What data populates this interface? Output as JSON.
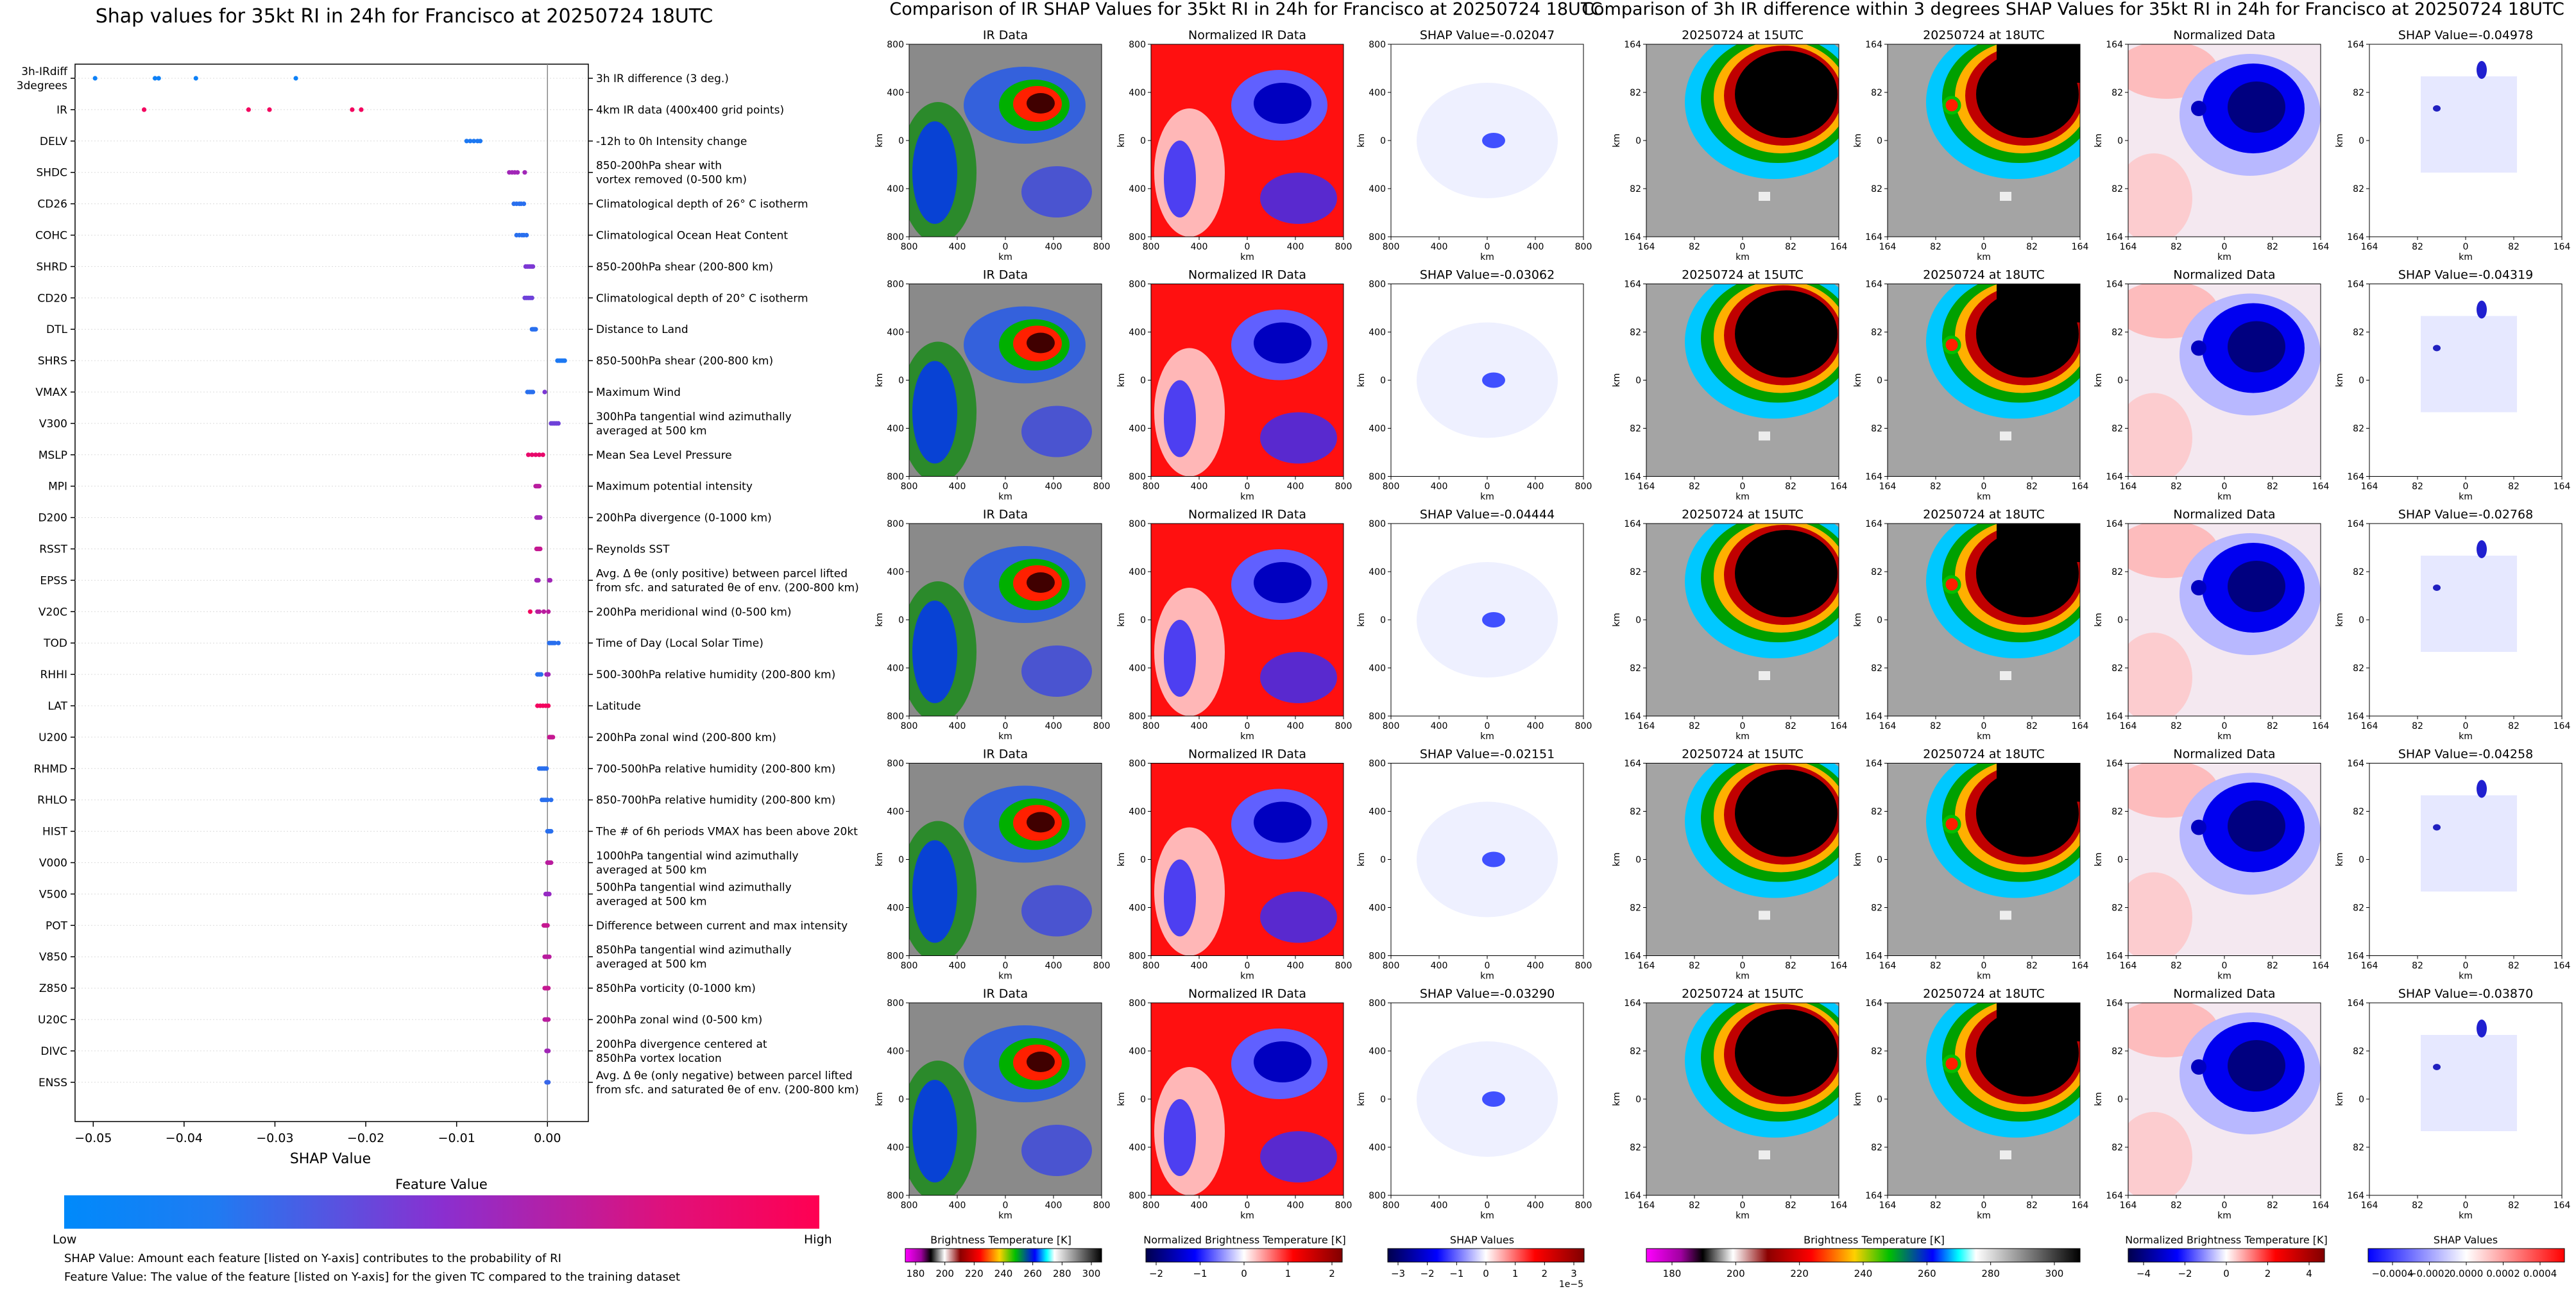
{
  "left_panel": {
    "title": "Shap values for 35kt RI in 24h for Francisco at 20250724 18UTC",
    "xlabel": "SHAP Value",
    "legend_title": "Feature Value",
    "legend_low": "Low",
    "legend_high": "High",
    "note1": "SHAP Value: Amount each feature [listed on Y-axis] contributes to the probability of RI",
    "note2": "Feature Value: The value of the feature [listed on Y-axis] for the given TC compared to the training dataset"
  },
  "middle_panel": {
    "title": "Comparison of IR SHAP Values for 35kt RI in 24h for Francisco at 20250724 18UTC",
    "col_titles": [
      "IR Data",
      "Normalized IR Data"
    ],
    "shap_titles": [
      "SHAP Value=-0.02047",
      "SHAP Value=-0.03062",
      "SHAP Value=-0.04444",
      "SHAP Value=-0.02151",
      "SHAP Value=-0.03290"
    ],
    "km": "km",
    "ticks": [
      "800",
      "400",
      "0",
      "400",
      "800"
    ],
    "cbar_ir": {
      "label": "Brightness Temperature [K]",
      "ticks": [
        "180",
        "200",
        "220",
        "240",
        "260",
        "280",
        "300"
      ]
    },
    "cbar_norm": {
      "label": "Normalized Brightness Temperature [K]",
      "ticks": [
        "−2",
        "−1",
        "0",
        "1",
        "2"
      ]
    },
    "cbar_shap": {
      "label": "SHAP Values",
      "ticks": [
        "−3",
        "−2",
        "−1",
        "0",
        "1",
        "2",
        "3"
      ],
      "exponent": "1e−5"
    }
  },
  "right_panel": {
    "title": "Comparison of 3h IR difference within 3 degrees SHAP Values for 35kt RI in 24h for Francisco at 20250724 18UTC",
    "col_titles": [
      "20250724 at 15UTC",
      "20250724 at 18UTC",
      "Normalized Data"
    ],
    "shap_titles": [
      "SHAP Value=-0.04978",
      "SHAP Value=-0.04319",
      "SHAP Value=-0.02768",
      "SHAP Value=-0.04258",
      "SHAP Value=-0.03870"
    ],
    "km": "km",
    "ticks": [
      "164",
      "82",
      "0",
      "82",
      "164"
    ],
    "cbar_ir": {
      "label": "Brightness Temperature [K]",
      "ticks": [
        "180",
        "200",
        "220",
        "240",
        "260",
        "280",
        "300"
      ]
    },
    "cbar_norm": {
      "label": "Normalized Brightness Temperature [K]",
      "ticks": [
        "−4",
        "−2",
        "0",
        "2",
        "4"
      ]
    },
    "cbar_shap": {
      "label": "SHAP Values",
      "ticks": [
        "−0.0004",
        "−0.0002",
        "0.0000",
        "0.0002",
        "0.0004"
      ]
    }
  },
  "chart_data": {
    "type": "scatter",
    "title": "Shap values for 35kt RI in 24h for Francisco at 20250724 18UTC",
    "xlabel": "SHAP Value",
    "ylabel": "",
    "xlim": [
      -0.052,
      0.0045
    ],
    "xticks": [
      -0.05,
      -0.04,
      -0.03,
      -0.02,
      -0.01,
      0.0
    ],
    "xtick_labels": [
      "−0.05",
      "−0.04",
      "−0.03",
      "−0.02",
      "−0.01",
      "0.00"
    ],
    "colors": {
      "low": "#008afb",
      "mid": "#8a2fd0",
      "high": "#ff0052"
    },
    "features": [
      {
        "code": "3h-IRdiff\n3degrees",
        "desc": "3h IR difference (3 deg.)",
        "points": [
          [
            -0.0498,
            0.05
          ],
          [
            -0.0432,
            0.05
          ],
          [
            -0.0428,
            0.05
          ],
          [
            -0.0387,
            0.05
          ],
          [
            -0.0277,
            0.05
          ]
        ]
      },
      {
        "code": "IR",
        "desc": "4km IR data (400x400 grid points)",
        "points": [
          [
            -0.0444,
            0.95
          ],
          [
            -0.0329,
            0.95
          ],
          [
            -0.0306,
            0.95
          ],
          [
            -0.0215,
            0.95
          ],
          [
            -0.0205,
            0.95
          ]
        ]
      },
      {
        "code": "DELV",
        "desc": "-12h to 0h Intensity change",
        "points": [
          [
            -0.0089,
            0.1
          ],
          [
            -0.0085,
            0.1
          ],
          [
            -0.0081,
            0.1
          ],
          [
            -0.0077,
            0.1
          ],
          [
            -0.0074,
            0.1
          ]
        ]
      },
      {
        "code": "SHDC",
        "desc": "850-200hPa shear with\nvortex removed (0-500 km)",
        "points": [
          [
            -0.0042,
            0.6
          ],
          [
            -0.0039,
            0.6
          ],
          [
            -0.0036,
            0.6
          ],
          [
            -0.0033,
            0.6
          ],
          [
            -0.0025,
            0.6
          ]
        ]
      },
      {
        "code": "CD26",
        "desc": "Climatological depth of 26° C isotherm",
        "points": [
          [
            -0.0037,
            0.15
          ],
          [
            -0.0034,
            0.15
          ],
          [
            -0.0031,
            0.15
          ],
          [
            -0.0029,
            0.15
          ],
          [
            -0.0026,
            0.15
          ]
        ]
      },
      {
        "code": "COHC",
        "desc": "Climatological Ocean Heat Content",
        "points": [
          [
            -0.0034,
            0.15
          ],
          [
            -0.0031,
            0.15
          ],
          [
            -0.0028,
            0.15
          ],
          [
            -0.0026,
            0.15
          ],
          [
            -0.0023,
            0.15
          ]
        ]
      },
      {
        "code": "SHRD",
        "desc": "850-200hPa shear (200-800 km)",
        "points": [
          [
            -0.0024,
            0.45
          ],
          [
            -0.0022,
            0.45
          ],
          [
            -0.002,
            0.45
          ],
          [
            -0.0018,
            0.45
          ],
          [
            -0.0016,
            0.45
          ]
        ]
      },
      {
        "code": "CD20",
        "desc": "Climatological depth of 20° C isotherm",
        "points": [
          [
            -0.0025,
            0.4
          ],
          [
            -0.0023,
            0.4
          ],
          [
            -0.0021,
            0.4
          ],
          [
            -0.0019,
            0.4
          ],
          [
            -0.0017,
            0.4
          ]
        ]
      },
      {
        "code": "DTL",
        "desc": "Distance to Land",
        "points": [
          [
            -0.0017,
            0.15
          ],
          [
            -0.0016,
            0.15
          ],
          [
            -0.0015,
            0.15
          ],
          [
            -0.0014,
            0.15
          ],
          [
            -0.0013,
            0.15
          ]
        ]
      },
      {
        "code": "SHRS",
        "desc": "850-500hPa shear (200-800 km)",
        "points": [
          [
            0.0011,
            0.1
          ],
          [
            0.0013,
            0.1
          ],
          [
            0.0015,
            0.1
          ],
          [
            0.0017,
            0.1
          ],
          [
            0.0019,
            0.1
          ]
        ]
      },
      {
        "code": "VMAX",
        "desc": "Maximum Wind",
        "points": [
          [
            -0.0022,
            0.15
          ],
          [
            -0.002,
            0.15
          ],
          [
            -0.0018,
            0.15
          ],
          [
            -0.0016,
            0.15
          ],
          [
            -0.0003,
            0.45
          ]
        ]
      },
      {
        "code": "V300",
        "desc": "300hPa tangential wind azimuthally\naveraged at 500 km",
        "points": [
          [
            0.0004,
            0.4
          ],
          [
            0.0006,
            0.4
          ],
          [
            0.0008,
            0.4
          ],
          [
            0.001,
            0.4
          ],
          [
            0.0012,
            0.4
          ]
        ]
      },
      {
        "code": "MSLP",
        "desc": "Mean Sea Level Pressure",
        "points": [
          [
            -0.0021,
            0.9
          ],
          [
            -0.0017,
            0.9
          ],
          [
            -0.0013,
            0.9
          ],
          [
            -0.0009,
            0.9
          ],
          [
            -0.0005,
            0.9
          ]
        ]
      },
      {
        "code": "MPI",
        "desc": "Maximum potential intensity",
        "points": [
          [
            -0.0013,
            0.7
          ],
          [
            -0.0012,
            0.7
          ],
          [
            -0.0011,
            0.7
          ],
          [
            -0.001,
            0.7
          ],
          [
            -0.0009,
            0.7
          ]
        ]
      },
      {
        "code": "D200",
        "desc": "200hPa divergence (0-1000 km)",
        "points": [
          [
            -0.0012,
            0.6
          ],
          [
            -0.0011,
            0.6
          ],
          [
            -0.001,
            0.6
          ],
          [
            -0.0009,
            0.6
          ],
          [
            -0.0008,
            0.6
          ]
        ]
      },
      {
        "code": "RSST",
        "desc": "Reynolds SST",
        "points": [
          [
            -0.0012,
            0.75
          ],
          [
            -0.0011,
            0.75
          ],
          [
            -0.001,
            0.75
          ],
          [
            -0.0009,
            0.75
          ],
          [
            -0.0008,
            0.75
          ]
        ]
      },
      {
        "code": "EPSS",
        "desc": "Avg. Δ θe (only positive) between parcel lifted\nfrom sfc. and saturated θe of env. (200-800 km)",
        "points": [
          [
            -0.0012,
            0.6
          ],
          [
            -0.0011,
            0.6
          ],
          [
            -0.001,
            0.6
          ],
          [
            0.0002,
            0.6
          ],
          [
            0.0003,
            0.6
          ]
        ]
      },
      {
        "code": "V20C",
        "desc": "200hPa meridional wind (0-500 km)",
        "points": [
          [
            -0.0019,
            0.95
          ],
          [
            -0.0011,
            0.7
          ],
          [
            -0.0009,
            0.7
          ],
          [
            -0.0004,
            0.7
          ],
          [
            0.0001,
            0.7
          ]
        ]
      },
      {
        "code": "TOD",
        "desc": "Time of Day (Local Solar Time)",
        "points": [
          [
            0.0002,
            0.15
          ],
          [
            0.0004,
            0.15
          ],
          [
            0.0006,
            0.15
          ],
          [
            0.0008,
            0.15
          ],
          [
            0.0012,
            0.15
          ]
        ]
      },
      {
        "code": "RHHI",
        "desc": "500-300hPa relative humidity (200-800 km)",
        "points": [
          [
            -0.0011,
            0.15
          ],
          [
            -0.0009,
            0.15
          ],
          [
            -0.0007,
            0.15
          ],
          [
            -0.0001,
            0.6
          ],
          [
            0.0001,
            0.6
          ]
        ]
      },
      {
        "code": "LAT",
        "desc": "Latitude",
        "points": [
          [
            -0.0011,
            0.95
          ],
          [
            -0.0008,
            0.95
          ],
          [
            -0.0005,
            0.95
          ],
          [
            -0.0002,
            0.95
          ],
          [
            0.0001,
            0.95
          ]
        ]
      },
      {
        "code": "U200",
        "desc": "200hPa zonal wind (200-800 km)",
        "points": [
          [
            0.0002,
            0.75
          ],
          [
            0.0003,
            0.75
          ],
          [
            0.0004,
            0.75
          ],
          [
            0.0005,
            0.75
          ],
          [
            0.0006,
            0.75
          ]
        ]
      },
      {
        "code": "RHMD",
        "desc": "700-500hPa relative humidity (200-800 km)",
        "points": [
          [
            -0.0009,
            0.15
          ],
          [
            -0.0007,
            0.15
          ],
          [
            -0.0005,
            0.15
          ],
          [
            -0.0003,
            0.15
          ],
          [
            -0.0001,
            0.15
          ]
        ]
      },
      {
        "code": "RHLO",
        "desc": "850-700hPa relative humidity (200-800 km)",
        "points": [
          [
            -0.0006,
            0.15
          ],
          [
            -0.0004,
            0.15
          ],
          [
            -0.0002,
            0.15
          ],
          [
            0.0,
            0.15
          ],
          [
            0.0004,
            0.15
          ]
        ]
      },
      {
        "code": "HIST",
        "desc": "The # of 6h periods VMAX has been above 20kt",
        "points": [
          [
            0.0,
            0.15
          ],
          [
            0.0001,
            0.15
          ],
          [
            0.0002,
            0.15
          ],
          [
            0.0003,
            0.15
          ],
          [
            0.0004,
            0.15
          ]
        ]
      },
      {
        "code": "V000",
        "desc": "1000hPa tangential wind azimuthally\naveraged at 500 km",
        "points": [
          [
            0.0,
            0.7
          ],
          [
            0.0001,
            0.7
          ],
          [
            0.0002,
            0.7
          ],
          [
            0.0003,
            0.7
          ],
          [
            0.0004,
            0.7
          ]
        ]
      },
      {
        "code": "V500",
        "desc": "500hPa tangential wind azimuthally\naveraged at 500 km",
        "points": [
          [
            -0.0002,
            0.55
          ],
          [
            -0.0001,
            0.55
          ],
          [
            0.0,
            0.55
          ],
          [
            0.0001,
            0.55
          ],
          [
            0.0002,
            0.55
          ]
        ]
      },
      {
        "code": "POT",
        "desc": "Difference between current and max intensity",
        "points": [
          [
            -0.0004,
            0.75
          ],
          [
            -0.0003,
            0.75
          ],
          [
            -0.0002,
            0.75
          ],
          [
            -0.0001,
            0.75
          ],
          [
            0.0,
            0.75
          ]
        ]
      },
      {
        "code": "V850",
        "desc": "850hPa tangential wind azimuthally\naveraged at 500 km",
        "points": [
          [
            -0.0003,
            0.7
          ],
          [
            -0.0002,
            0.7
          ],
          [
            -0.0001,
            0.7
          ],
          [
            0.0,
            0.7
          ],
          [
            0.0002,
            0.7
          ]
        ]
      },
      {
        "code": "Z850",
        "desc": "850hPa vorticity (0-1000 km)",
        "points": [
          [
            -0.0003,
            0.75
          ],
          [
            -0.0002,
            0.75
          ],
          [
            -0.0001,
            0.75
          ],
          [
            0.0,
            0.75
          ],
          [
            0.0001,
            0.75
          ]
        ]
      },
      {
        "code": "U20C",
        "desc": "200hPa zonal wind (0-500 km)",
        "points": [
          [
            -0.0003,
            0.7
          ],
          [
            -0.0002,
            0.7
          ],
          [
            -0.0001,
            0.7
          ],
          [
            0.0,
            0.7
          ],
          [
            0.0001,
            0.7
          ]
        ]
      },
      {
        "code": "DIVC",
        "desc": "200hPa divergence centered at\n850hPa vortex location",
        "points": [
          [
            -0.0001,
            0.6
          ],
          [
            0.0,
            0.6
          ],
          [
            0.0001,
            0.6
          ]
        ]
      },
      {
        "code": "ENSS",
        "desc": "Avg. Δ θe (only negative) between parcel lifted\nfrom sfc. and saturated θe of env. (200-800 km)",
        "points": [
          [
            -0.0001,
            0.2
          ],
          [
            0.0,
            0.2
          ],
          [
            0.0001,
            0.2
          ]
        ]
      }
    ]
  }
}
